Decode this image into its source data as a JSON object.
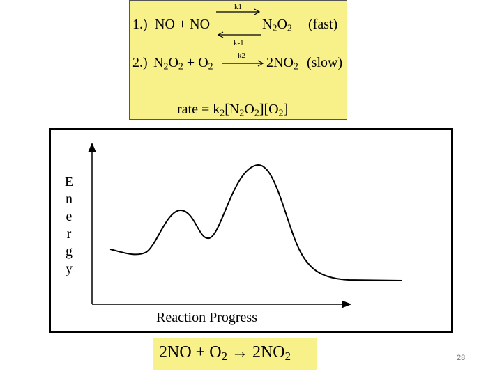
{
  "mechanism": {
    "step1": {
      "number": "1.)",
      "reactants": [
        "NO",
        "+",
        "NO"
      ],
      "forward_k": "k1",
      "reverse_k": "k-1",
      "product": {
        "base": "N",
        "sub1": "2",
        "mid": "O",
        "sub2": "2"
      },
      "speed": "(fast)"
    },
    "step2": {
      "number": "2.)",
      "reactant1": {
        "base": "N",
        "sub1": "2",
        "mid": "O",
        "sub2": "2"
      },
      "plus": "+",
      "reactant2": {
        "base": "O",
        "sub": "2"
      },
      "k": "k2",
      "product": {
        "base": "2NO",
        "sub": "2"
      },
      "speed": "(slow)"
    },
    "rate_law": {
      "lhs": "rate =",
      "k": "k",
      "k_sub": "2",
      "term1": {
        "open": "[N",
        "sub1": "2",
        "mid": "O",
        "sub2": "2",
        "close": "]"
      },
      "term2": {
        "open": "[O",
        "sub": "2",
        "close": "]"
      }
    }
  },
  "energy_diagram": {
    "y_axis_label_letters": [
      "E",
      "n",
      "e",
      "r",
      "g",
      "y"
    ],
    "x_axis_label": "Reaction Progress",
    "curve_description": "two humps: small first peak, larger second peak, ending lower than start"
  },
  "overall_reaction": {
    "lhs1": "2NO",
    "plus": "+",
    "o": "O",
    "o_sub": "2",
    "arrow": "→",
    "rhs": "2NO",
    "rhs_sub": "2"
  },
  "colors": {
    "highlight": "#f8f089",
    "curve": "#000000"
  },
  "page_number": "28"
}
